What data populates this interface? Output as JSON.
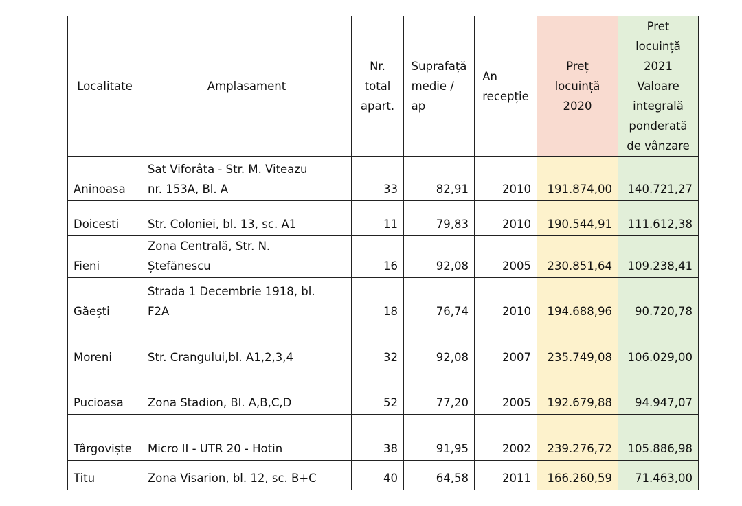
{
  "table": {
    "headers": {
      "localitate": "Localitate",
      "amplasament": "Amplasament",
      "nr_total": [
        "Nr.",
        "total",
        "apart."
      ],
      "suprafata": [
        "Suprafață",
        "medie /",
        "ap"
      ],
      "an_receptie": [
        "An",
        "recepție"
      ],
      "pret_2020": [
        "Preț",
        "locuință",
        "2020"
      ],
      "pret_2021": [
        "Pret",
        "locuință",
        "2021",
        "Valoare",
        "integrală",
        "ponderată",
        "de vânzare"
      ]
    },
    "rows": [
      {
        "localitate": "Aninoasa",
        "amplasament": [
          "Sat Viforâta - Str. M. Viteazu",
          "nr. 153A, Bl. A"
        ],
        "nr": "33",
        "suprafata": "82,91",
        "an": "2010",
        "pret2020": "191.874,00",
        "pret2021": "140.721,27"
      },
      {
        "localitate": "Doicesti",
        "amplasament": [
          "Str. Coloniei, bl. 13, sc. A1"
        ],
        "nr": "11",
        "suprafata": "79,83",
        "an": "2010",
        "pret2020": "190.544,91",
        "pret2021": "111.612,38"
      },
      {
        "localitate": "Fieni",
        "amplasament": [
          "Zona Centrală, Str. N.",
          "Ștefănescu"
        ],
        "nr": "16",
        "suprafata": "92,08",
        "an": "2005",
        "pret2020": "230.851,64",
        "pret2021": "109.238,41"
      },
      {
        "localitate": "Găești",
        "amplasament": [
          "Strada 1 Decembrie 1918, bl.",
          "F2A"
        ],
        "nr": "18",
        "suprafata": "76,74",
        "an": "2010",
        "pret2020": "194.688,96",
        "pret2021": "90.720,78"
      },
      {
        "localitate": "Moreni",
        "amplasament": [
          "Str. Crangului,bl. A1,2,3,4"
        ],
        "nr": "32",
        "suprafata": "92,08",
        "an": "2007",
        "pret2020": "235.749,08",
        "pret2021": "106.029,00"
      },
      {
        "localitate": "Pucioasa",
        "amplasament": [
          "Zona Stadion, Bl. A,B,C,D"
        ],
        "nr": "52",
        "suprafata": "77,20",
        "an": "2005",
        "pret2020": "192.679,88",
        "pret2021": "94.947,07"
      },
      {
        "localitate": "Târgoviște",
        "amplasament": [
          "Micro II - UTR 20 - Hotin"
        ],
        "nr": "38",
        "suprafata": "91,95",
        "an": "2002",
        "pret2020": "239.276,72",
        "pret2021": "105.886,98"
      },
      {
        "localitate": "Titu",
        "amplasament": [
          "Zona Visarion, bl. 12, sc. B+C"
        ],
        "nr": "40",
        "suprafata": "64,58",
        "an": "2011",
        "pret2020": "166.260,59",
        "pret2021": "71.463,00"
      }
    ]
  }
}
